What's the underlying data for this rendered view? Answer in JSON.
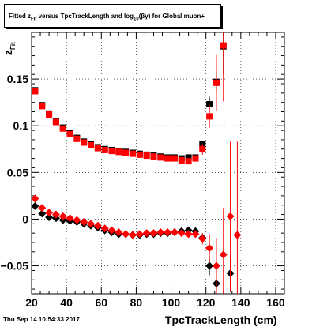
{
  "title": {
    "prefix": "Fitted  z",
    "sub": "Fit",
    "middle": " versus TpcTrackLength and log",
    "sub2": "10",
    "suffix": "(βγ) for Global muon+"
  },
  "timestamp": "Thu Sep 14 10:54:33 2017",
  "chart_data": {
    "type": "scatter",
    "xlabel": "TpcTrackLength (cm)",
    "ylabel_main": "z",
    "ylabel_sub": "Fit",
    "xlim": [
      20,
      165
    ],
    "ylim": [
      -0.08,
      0.2
    ],
    "xticks": [
      20,
      40,
      60,
      80,
      100,
      120,
      140,
      160
    ],
    "yticks": [
      -0.05,
      0,
      0.05,
      0.1,
      0.15
    ],
    "ytick_labels": [
      "−0.05",
      "0",
      "0.05",
      "0.1",
      "0.15"
    ],
    "grid": true,
    "series": [
      {
        "marker": "square",
        "color": "#000000",
        "points": [
          {
            "x": 22,
            "y": 0.138
          },
          {
            "x": 26,
            "y": 0.122
          },
          {
            "x": 30,
            "y": 0.113
          },
          {
            "x": 34,
            "y": 0.105
          },
          {
            "x": 38,
            "y": 0.098
          },
          {
            "x": 42,
            "y": 0.092
          },
          {
            "x": 46,
            "y": 0.087
          },
          {
            "x": 50,
            "y": 0.083
          },
          {
            "x": 54,
            "y": 0.08
          },
          {
            "x": 58,
            "y": 0.077
          },
          {
            "x": 62,
            "y": 0.075
          },
          {
            "x": 66,
            "y": 0.074
          },
          {
            "x": 70,
            "y": 0.073
          },
          {
            "x": 74,
            "y": 0.072
          },
          {
            "x": 78,
            "y": 0.071
          },
          {
            "x": 82,
            "y": 0.07
          },
          {
            "x": 86,
            "y": 0.069
          },
          {
            "x": 90,
            "y": 0.068
          },
          {
            "x": 94,
            "y": 0.067
          },
          {
            "x": 98,
            "y": 0.066
          },
          {
            "x": 102,
            "y": 0.066
          },
          {
            "x": 106,
            "y": 0.065
          },
          {
            "x": 110,
            "y": 0.066
          },
          {
            "x": 114,
            "y": 0.066
          },
          {
            "x": 118,
            "y": 0.08,
            "err": 0.004
          },
          {
            "x": 122,
            "y": 0.123,
            "err": 0.008
          },
          {
            "x": 126,
            "y": 0.147,
            "err": 0.012
          },
          {
            "x": 130,
            "y": 0.185,
            "err": 0.03
          }
        ]
      },
      {
        "marker": "square",
        "color": "#ff0000",
        "points": [
          {
            "x": 22,
            "y": 0.137
          },
          {
            "x": 26,
            "y": 0.121
          },
          {
            "x": 30,
            "y": 0.112
          },
          {
            "x": 34,
            "y": 0.104
          },
          {
            "x": 38,
            "y": 0.097
          },
          {
            "x": 42,
            "y": 0.091
          },
          {
            "x": 46,
            "y": 0.086
          },
          {
            "x": 50,
            "y": 0.082
          },
          {
            "x": 54,
            "y": 0.079
          },
          {
            "x": 58,
            "y": 0.076
          },
          {
            "x": 62,
            "y": 0.074
          },
          {
            "x": 66,
            "y": 0.073
          },
          {
            "x": 70,
            "y": 0.072
          },
          {
            "x": 74,
            "y": 0.071
          },
          {
            "x": 78,
            "y": 0.07
          },
          {
            "x": 82,
            "y": 0.069
          },
          {
            "x": 86,
            "y": 0.068
          },
          {
            "x": 90,
            "y": 0.067
          },
          {
            "x": 94,
            "y": 0.066
          },
          {
            "x": 98,
            "y": 0.065
          },
          {
            "x": 102,
            "y": 0.065
          },
          {
            "x": 106,
            "y": 0.063
          },
          {
            "x": 110,
            "y": 0.062
          },
          {
            "x": 114,
            "y": 0.065
          },
          {
            "x": 118,
            "y": 0.075,
            "err": 0.006
          },
          {
            "x": 122,
            "y": 0.11,
            "err": 0.012
          },
          {
            "x": 126,
            "y": 0.146,
            "err": 0.03
          },
          {
            "x": 130,
            "y": 0.186,
            "err": 0.06
          }
        ]
      },
      {
        "marker": "diamond",
        "color": "#000000",
        "points": [
          {
            "x": 22,
            "y": 0.014
          },
          {
            "x": 26,
            "y": 0.006
          },
          {
            "x": 30,
            "y": 0.002
          },
          {
            "x": 34,
            "y": 0.001
          },
          {
            "x": 38,
            "y": -0.001
          },
          {
            "x": 42,
            "y": -0.002
          },
          {
            "x": 46,
            "y": -0.003
          },
          {
            "x": 50,
            "y": -0.005
          },
          {
            "x": 54,
            "y": -0.007
          },
          {
            "x": 58,
            "y": -0.009
          },
          {
            "x": 62,
            "y": -0.012
          },
          {
            "x": 66,
            "y": -0.014
          },
          {
            "x": 70,
            "y": -0.016
          },
          {
            "x": 74,
            "y": -0.016
          },
          {
            "x": 78,
            "y": -0.017
          },
          {
            "x": 82,
            "y": -0.017
          },
          {
            "x": 86,
            "y": -0.016
          },
          {
            "x": 90,
            "y": -0.016
          },
          {
            "x": 94,
            "y": -0.015
          },
          {
            "x": 98,
            "y": -0.015
          },
          {
            "x": 102,
            "y": -0.014
          },
          {
            "x": 106,
            "y": -0.013
          },
          {
            "x": 110,
            "y": -0.012
          },
          {
            "x": 114,
            "y": -0.013
          },
          {
            "x": 118,
            "y": -0.02,
            "err": 0.004
          },
          {
            "x": 122,
            "y": -0.05,
            "err": 0.01
          },
          {
            "x": 126,
            "y": -0.069,
            "err": 0.015
          },
          {
            "x": 134,
            "y": -0.058,
            "err": 0.02
          }
        ]
      },
      {
        "marker": "diamond",
        "color": "#ff0000",
        "points": [
          {
            "x": 22,
            "y": 0.022
          },
          {
            "x": 26,
            "y": 0.012
          },
          {
            "x": 30,
            "y": 0.007
          },
          {
            "x": 34,
            "y": 0.005
          },
          {
            "x": 38,
            "y": 0.003
          },
          {
            "x": 42,
            "y": 0.001
          },
          {
            "x": 46,
            "y": -0.001
          },
          {
            "x": 50,
            "y": -0.003
          },
          {
            "x": 54,
            "y": -0.005
          },
          {
            "x": 58,
            "y": -0.007
          },
          {
            "x": 62,
            "y": -0.01
          },
          {
            "x": 66,
            "y": -0.012
          },
          {
            "x": 70,
            "y": -0.014
          },
          {
            "x": 74,
            "y": -0.016
          },
          {
            "x": 78,
            "y": -0.017
          },
          {
            "x": 82,
            "y": -0.016
          },
          {
            "x": 86,
            "y": -0.015
          },
          {
            "x": 90,
            "y": -0.015
          },
          {
            "x": 94,
            "y": -0.014
          },
          {
            "x": 98,
            "y": -0.014
          },
          {
            "x": 102,
            "y": -0.014
          },
          {
            "x": 106,
            "y": -0.015
          },
          {
            "x": 110,
            "y": -0.016
          },
          {
            "x": 114,
            "y": -0.016
          },
          {
            "x": 118,
            "y": -0.021,
            "err": 0.006
          },
          {
            "x": 122,
            "y": -0.031,
            "err": 0.015
          },
          {
            "x": 126,
            "y": -0.05,
            "err": 0.03
          },
          {
            "x": 130,
            "y": -0.038,
            "err": 0.05
          },
          {
            "x": 134,
            "y": 0.003,
            "err": 0.08
          },
          {
            "x": 138,
            "y": -0.017,
            "err": 0.1
          }
        ]
      }
    ]
  }
}
